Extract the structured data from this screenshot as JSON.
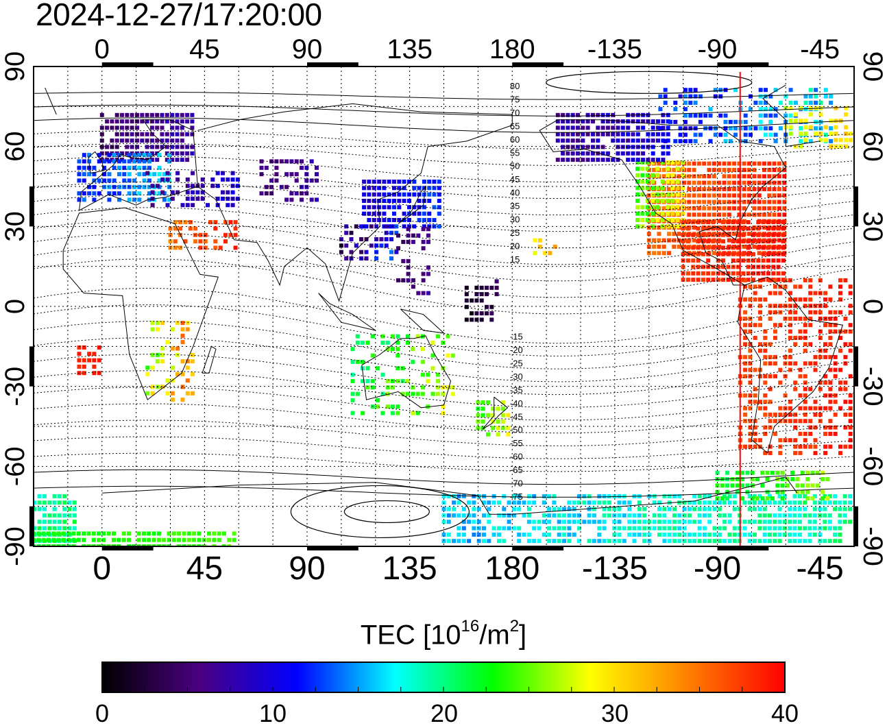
{
  "header": {
    "timestamp": "2024-12-27/17:20:00"
  },
  "map": {
    "projection": "equirectangular",
    "center_longitude": 150,
    "lon_ticks": [
      {
        "lon": 0,
        "label": "0"
      },
      {
        "lon": 45,
        "label": "45"
      },
      {
        "lon": 90,
        "label": "90"
      },
      {
        "lon": 135,
        "label": "135"
      },
      {
        "lon": 180,
        "label": "180"
      },
      {
        "lon": 225,
        "label": "-135"
      },
      {
        "lon": 270,
        "label": "-90"
      },
      {
        "lon": 315,
        "label": "-45"
      }
    ],
    "lat_ticks": [
      {
        "lat": 90,
        "label": "90"
      },
      {
        "lat": 60,
        "label": "60"
      },
      {
        "lat": 30,
        "label": "30"
      },
      {
        "lat": 0,
        "label": "0"
      },
      {
        "lat": -30,
        "label": "-30"
      },
      {
        "lat": -60,
        "label": "-60"
      },
      {
        "lat": -90,
        "label": "-90"
      }
    ],
    "grid_spacing_deg": 15,
    "meridian_marker": {
      "lon": 280,
      "color": "#ff0000"
    },
    "magnetic_contour_labels": [
      "80",
      "75",
      "70",
      "65",
      "60",
      "55",
      "50",
      "45",
      "40",
      "35",
      "30",
      "25",
      "20",
      "15",
      "-15",
      "-20",
      "-25",
      "-30",
      "-35",
      "-40",
      "-45",
      "-50",
      "-55",
      "-60",
      "-65",
      "-70",
      "-75"
    ],
    "tec_regions": [
      {
        "region": "North America",
        "tec": 38
      },
      {
        "region": "Central America",
        "tec": 39
      },
      {
        "region": "South America",
        "tec": 39
      },
      {
        "region": "Greenland / Arctic Canada",
        "tec": 8
      },
      {
        "region": "Alaska",
        "tec": 8
      },
      {
        "region": "Northern Europe",
        "tec": 7
      },
      {
        "region": "Southern Europe",
        "tec": 14
      },
      {
        "region": "Middle East",
        "tec": 37
      },
      {
        "region": "Japan / East Asia",
        "tec": 11
      },
      {
        "region": "Antarctica",
        "tec": 18
      },
      {
        "region": "Australia",
        "tec": 22
      },
      {
        "region": "New Zealand",
        "tec": 26
      }
    ]
  },
  "colorbar": {
    "title_main": "TEC  [10",
    "title_exp1": "16",
    "title_mid": "/m",
    "title_exp2": "2",
    "title_end": "]",
    "min": 0,
    "max": 40,
    "tick_labels": [
      "0",
      "10",
      "20",
      "30",
      "40"
    ],
    "stops": [
      "#000000",
      "#4b0082",
      "#0000ff",
      "#00ffff",
      "#00ff00",
      "#ffff00",
      "#ff8000",
      "#ff0000"
    ]
  }
}
